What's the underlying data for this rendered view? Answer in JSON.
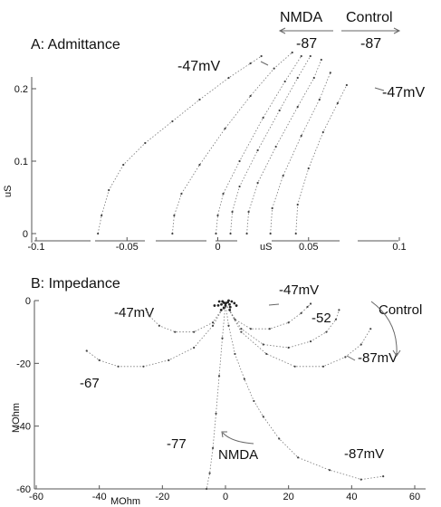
{
  "chart_data": [
    {
      "panel": "A",
      "type": "scatter",
      "title": "A: Admittance",
      "x_unit_label": "uS",
      "ylabel": "uS",
      "xlim": [
        -0.1,
        0.1
      ],
      "ylim": [
        -0.01,
        0.25
      ],
      "x_ticks": [
        {
          "value": -0.1,
          "label": "-0.1"
        },
        {
          "value": -0.05,
          "label": "-0.05"
        },
        {
          "value": 0,
          "label": "0"
        },
        {
          "value": 0.05,
          "label": "0.05"
        },
        {
          "value": 0.1,
          "label": "0.1"
        }
      ],
      "y_ticks": [
        {
          "value": 0,
          "label": "0"
        },
        {
          "value": 0.1,
          "label": "0.1"
        },
        {
          "value": 0.2,
          "label": "0.2"
        }
      ],
      "annotations": [
        "NMDA",
        "Control",
        "-87",
        "-87",
        "-47mV",
        "-47mV"
      ],
      "series": [
        {
          "x": [
            -0.066,
            -0.064,
            -0.06,
            -0.052,
            -0.04,
            -0.025,
            -0.01,
            0.006,
            0.018,
            0.024
          ],
          "y": [
            0.0,
            0.025,
            0.06,
            0.095,
            0.125,
            0.155,
            0.185,
            0.215,
            0.235,
            0.245
          ]
        },
        {
          "x": [
            -0.025,
            -0.024,
            -0.02,
            -0.01,
            0.004,
            0.018,
            0.031,
            0.041
          ],
          "y": [
            0.0,
            0.025,
            0.055,
            0.095,
            0.145,
            0.19,
            0.228,
            0.25
          ]
        },
        {
          "x": [
            -0.001,
            0.0,
            0.003,
            0.012,
            0.025,
            0.037,
            0.046
          ],
          "y": [
            0.0,
            0.025,
            0.055,
            0.1,
            0.16,
            0.21,
            0.245
          ]
        },
        {
          "x": [
            0.007,
            0.008,
            0.012,
            0.022,
            0.034,
            0.044,
            0.051
          ],
          "y": [
            0.0,
            0.03,
            0.065,
            0.115,
            0.17,
            0.215,
            0.245
          ]
        },
        {
          "x": [
            0.016,
            0.017,
            0.022,
            0.032,
            0.044,
            0.053,
            0.057
          ],
          "y": [
            0.0,
            0.03,
            0.07,
            0.12,
            0.175,
            0.215,
            0.24
          ]
        },
        {
          "x": [
            0.029,
            0.03,
            0.036,
            0.046,
            0.056,
            0.062
          ],
          "y": [
            0.0,
            0.035,
            0.08,
            0.135,
            0.185,
            0.222
          ]
        },
        {
          "x": [
            0.043,
            0.044,
            0.05,
            0.058,
            0.066,
            0.071
          ],
          "y": [
            0.0,
            0.04,
            0.09,
            0.14,
            0.18,
            0.205
          ]
        }
      ]
    },
    {
      "panel": "B",
      "type": "scatter",
      "title": "B: Impedance",
      "x_unit_label": "MOhm",
      "ylabel": "MOhm",
      "xlim": [
        -60,
        60
      ],
      "ylim": [
        -60,
        0
      ],
      "x_ticks": [
        {
          "value": -60,
          "label": "-60"
        },
        {
          "value": -40,
          "label": "-40"
        },
        {
          "value": -20,
          "label": "-20"
        },
        {
          "value": 0,
          "label": "0"
        },
        {
          "value": 20,
          "label": "20"
        },
        {
          "value": 40,
          "label": "40"
        },
        {
          "value": 60,
          "label": "60"
        }
      ],
      "y_ticks": [
        {
          "value": 0,
          "label": "0"
        },
        {
          "value": -20,
          "label": "-20"
        },
        {
          "value": -40,
          "label": "-40"
        },
        {
          "value": -60,
          "label": "-60"
        }
      ],
      "annotations": [
        "-47mV",
        "-47mV",
        "-52",
        "Control",
        "-87mV",
        "-67",
        "-77",
        "NMDA",
        "-87mV"
      ],
      "series": [
        {
          "x": [
            0,
            3,
            8,
            14,
            20,
            24,
            26,
            27
          ],
          "y": [
            -1,
            -6,
            -9,
            -9,
            -7,
            -4,
            -2,
            -1
          ]
        },
        {
          "x": [
            0,
            -4,
            -10,
            -16,
            -21,
            -24,
            -25
          ],
          "y": [
            -1,
            -7,
            -10,
            -10,
            -8,
            -5,
            -3
          ]
        },
        {
          "x": [
            0,
            5,
            12,
            20,
            27,
            32,
            35,
            36
          ],
          "y": [
            -1,
            -9,
            -14,
            -15,
            -13,
            -10,
            -6,
            -3
          ]
        },
        {
          "x": [
            0,
            5,
            13,
            22,
            31,
            38,
            43,
            46
          ],
          "y": [
            -1,
            -10,
            -17,
            -21,
            -21,
            -18,
            -14,
            -9
          ]
        },
        {
          "x": [
            0,
            -4,
            -10,
            -18,
            -26,
            -34,
            -40,
            -44
          ],
          "y": [
            -1,
            -8,
            -15,
            -19,
            -21,
            -21,
            -19,
            -16
          ]
        },
        {
          "x": [
            0,
            1,
            3,
            6,
            9,
            12,
            17,
            23,
            33,
            43,
            50
          ],
          "y": [
            -1,
            -8,
            -17,
            -25,
            -32,
            -37,
            -44,
            -50,
            -54,
            -57,
            -56
          ]
        },
        {
          "x": [
            0,
            -1,
            -2,
            -3,
            -4,
            -5,
            -6
          ],
          "y": [
            -1,
            -12,
            -24,
            -36,
            -47,
            -55,
            -60
          ]
        }
      ]
    }
  ]
}
